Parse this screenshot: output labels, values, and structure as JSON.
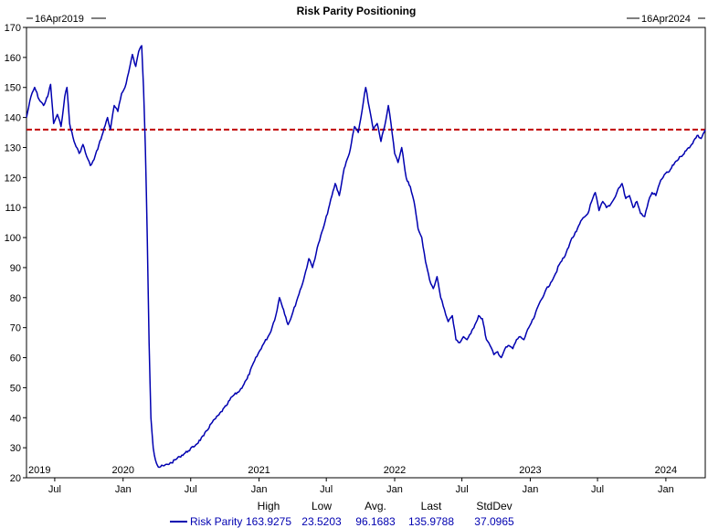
{
  "chart_data": {
    "type": "line",
    "title": "Risk Parity Positioning",
    "start_label": "16Apr2019",
    "end_label": "16Apr2024",
    "ylim": [
      20,
      170
    ],
    "y_ticks": [
      20,
      30,
      40,
      50,
      60,
      70,
      80,
      90,
      100,
      110,
      120,
      130,
      140,
      150,
      160,
      170
    ],
    "x_range": [
      "2019-04-16",
      "2024-04-16"
    ],
    "x_ticks": [
      {
        "label": "Jul",
        "date": "2019-07-01"
      },
      {
        "label": "Jan",
        "date": "2020-01-01"
      },
      {
        "label": "Jul",
        "date": "2020-07-01"
      },
      {
        "label": "Jan",
        "date": "2021-01-01"
      },
      {
        "label": "Jul",
        "date": "2021-07-01"
      },
      {
        "label": "Jan",
        "date": "2022-01-01"
      },
      {
        "label": "Jul",
        "date": "2022-07-01"
      },
      {
        "label": "Jan",
        "date": "2023-01-01"
      },
      {
        "label": "Jul",
        "date": "2023-07-01"
      },
      {
        "label": "Jan",
        "date": "2024-01-01"
      }
    ],
    "year_labels": [
      {
        "label": "2019",
        "date": "2019-04-16"
      },
      {
        "label": "2020",
        "date": "2020-01-01"
      },
      {
        "label": "2021",
        "date": "2021-01-01"
      },
      {
        "label": "2022",
        "date": "2022-01-01"
      },
      {
        "label": "2023",
        "date": "2023-01-01"
      },
      {
        "label": "2024",
        "date": "2024-01-01"
      }
    ],
    "reference_line": {
      "value": 135.9788,
      "color": "#c00000",
      "style": "dashed"
    },
    "series": [
      {
        "name": "Risk Parity",
        "color": "#0000b0",
        "points": [
          [
            "2019-04-16",
            140
          ],
          [
            "2019-04-28",
            147
          ],
          [
            "2019-05-08",
            150
          ],
          [
            "2019-05-20",
            146
          ],
          [
            "2019-06-01",
            144
          ],
          [
            "2019-06-12",
            147
          ],
          [
            "2019-06-20",
            151
          ],
          [
            "2019-06-28",
            138
          ],
          [
            "2019-07-08",
            141
          ],
          [
            "2019-07-18",
            137
          ],
          [
            "2019-07-28",
            147
          ],
          [
            "2019-08-03",
            150
          ],
          [
            "2019-08-10",
            138
          ],
          [
            "2019-08-22",
            132
          ],
          [
            "2019-09-05",
            128
          ],
          [
            "2019-09-15",
            131
          ],
          [
            "2019-09-25",
            127
          ],
          [
            "2019-10-05",
            124
          ],
          [
            "2019-10-15",
            126
          ],
          [
            "2019-10-28",
            131
          ],
          [
            "2019-11-08",
            135
          ],
          [
            "2019-11-20",
            140
          ],
          [
            "2019-11-28",
            136
          ],
          [
            "2019-12-08",
            144
          ],
          [
            "2019-12-18",
            142
          ],
          [
            "2019-12-28",
            148
          ],
          [
            "2020-01-06",
            150
          ],
          [
            "2020-01-16",
            155
          ],
          [
            "2020-01-26",
            161
          ],
          [
            "2020-02-04",
            157
          ],
          [
            "2020-02-12",
            162
          ],
          [
            "2020-02-20",
            163.9
          ],
          [
            "2020-02-25",
            150
          ],
          [
            "2020-03-01",
            130
          ],
          [
            "2020-03-06",
            100
          ],
          [
            "2020-03-11",
            65
          ],
          [
            "2020-03-16",
            40
          ],
          [
            "2020-03-22",
            30
          ],
          [
            "2020-03-28",
            26
          ],
          [
            "2020-04-05",
            23.52
          ],
          [
            "2020-04-20",
            24
          ],
          [
            "2020-05-10",
            25
          ],
          [
            "2020-06-01",
            27
          ],
          [
            "2020-06-25",
            29
          ],
          [
            "2020-07-15",
            31
          ],
          [
            "2020-08-05",
            34
          ],
          [
            "2020-08-25",
            38
          ],
          [
            "2020-09-15",
            41
          ],
          [
            "2020-10-05",
            44
          ],
          [
            "2020-10-20",
            47
          ],
          [
            "2020-11-10",
            49
          ],
          [
            "2020-11-30",
            53
          ],
          [
            "2020-12-20",
            59
          ],
          [
            "2021-01-10",
            64
          ],
          [
            "2021-01-30",
            68
          ],
          [
            "2021-02-15",
            74
          ],
          [
            "2021-02-25",
            80
          ],
          [
            "2021-03-08",
            76
          ],
          [
            "2021-03-20",
            71
          ],
          [
            "2021-03-30",
            74
          ],
          [
            "2021-04-15",
            80
          ],
          [
            "2021-05-01",
            86
          ],
          [
            "2021-05-15",
            93
          ],
          [
            "2021-05-25",
            90
          ],
          [
            "2021-06-10",
            98
          ],
          [
            "2021-06-25",
            104
          ],
          [
            "2021-07-10",
            111
          ],
          [
            "2021-07-25",
            118
          ],
          [
            "2021-08-05",
            114
          ],
          [
            "2021-08-18",
            123
          ],
          [
            "2021-09-01",
            128
          ],
          [
            "2021-09-15",
            137
          ],
          [
            "2021-09-25",
            135
          ],
          [
            "2021-10-05",
            142
          ],
          [
            "2021-10-15",
            150
          ],
          [
            "2021-10-25",
            143
          ],
          [
            "2021-11-05",
            136
          ],
          [
            "2021-11-15",
            138
          ],
          [
            "2021-11-25",
            132
          ],
          [
            "2021-12-05",
            137
          ],
          [
            "2021-12-15",
            144
          ],
          [
            "2021-12-22",
            138
          ],
          [
            "2022-01-01",
            128
          ],
          [
            "2022-01-10",
            125
          ],
          [
            "2022-01-20",
            130
          ],
          [
            "2022-02-01",
            120
          ],
          [
            "2022-02-12",
            117
          ],
          [
            "2022-02-22",
            112
          ],
          [
            "2022-03-05",
            103
          ],
          [
            "2022-03-15",
            100
          ],
          [
            "2022-03-25",
            92
          ],
          [
            "2022-04-05",
            86
          ],
          [
            "2022-04-15",
            83
          ],
          [
            "2022-04-25",
            87
          ],
          [
            "2022-05-05",
            80
          ],
          [
            "2022-05-15",
            76
          ],
          [
            "2022-05-25",
            72
          ],
          [
            "2022-06-05",
            74
          ],
          [
            "2022-06-15",
            66
          ],
          [
            "2022-06-25",
            65
          ],
          [
            "2022-07-05",
            67
          ],
          [
            "2022-07-15",
            66
          ],
          [
            "2022-07-25",
            68
          ],
          [
            "2022-08-05",
            71
          ],
          [
            "2022-08-15",
            74
          ],
          [
            "2022-08-25",
            73
          ],
          [
            "2022-09-05",
            66
          ],
          [
            "2022-09-15",
            64
          ],
          [
            "2022-09-25",
            61
          ],
          [
            "2022-10-05",
            62
          ],
          [
            "2022-10-15",
            60
          ],
          [
            "2022-10-25",
            63
          ],
          [
            "2022-11-05",
            64
          ],
          [
            "2022-11-15",
            63
          ],
          [
            "2022-11-25",
            66
          ],
          [
            "2022-12-05",
            67
          ],
          [
            "2022-12-15",
            66
          ],
          [
            "2022-12-28",
            70
          ],
          [
            "2023-01-10",
            73
          ],
          [
            "2023-01-25",
            78
          ],
          [
            "2023-02-10",
            82
          ],
          [
            "2023-02-25",
            85
          ],
          [
            "2023-03-10",
            88
          ],
          [
            "2023-03-20",
            91
          ],
          [
            "2023-04-05",
            94
          ],
          [
            "2023-04-20",
            99
          ],
          [
            "2023-05-05",
            102
          ],
          [
            "2023-05-20",
            106
          ],
          [
            "2023-06-05",
            108
          ],
          [
            "2023-06-15",
            112
          ],
          [
            "2023-06-25",
            115
          ],
          [
            "2023-07-05",
            109
          ],
          [
            "2023-07-15",
            112
          ],
          [
            "2023-07-25",
            110
          ],
          [
            "2023-08-05",
            111
          ],
          [
            "2023-08-15",
            113
          ],
          [
            "2023-08-25",
            116
          ],
          [
            "2023-09-05",
            118
          ],
          [
            "2023-09-15",
            113
          ],
          [
            "2023-09-25",
            114
          ],
          [
            "2023-10-05",
            110
          ],
          [
            "2023-10-15",
            112
          ],
          [
            "2023-10-25",
            108
          ],
          [
            "2023-11-05",
            107
          ],
          [
            "2023-11-15",
            112
          ],
          [
            "2023-11-25",
            115
          ],
          [
            "2023-12-05",
            114
          ],
          [
            "2023-12-15",
            118
          ],
          [
            "2023-12-28",
            121
          ],
          [
            "2024-01-10",
            122
          ],
          [
            "2024-01-25",
            125
          ],
          [
            "2024-02-10",
            127
          ],
          [
            "2024-02-25",
            129
          ],
          [
            "2024-03-10",
            131
          ],
          [
            "2024-03-25",
            134
          ],
          [
            "2024-04-05",
            133
          ],
          [
            "2024-04-16",
            135.98
          ]
        ]
      }
    ],
    "stats": {
      "headers": [
        "High",
        "Low",
        "Avg.",
        "Last",
        "StdDev"
      ],
      "series_label": "Risk Parity",
      "values": [
        "163.9275",
        "23.5203",
        "96.1683",
        "135.9788",
        "37.0965"
      ]
    }
  }
}
